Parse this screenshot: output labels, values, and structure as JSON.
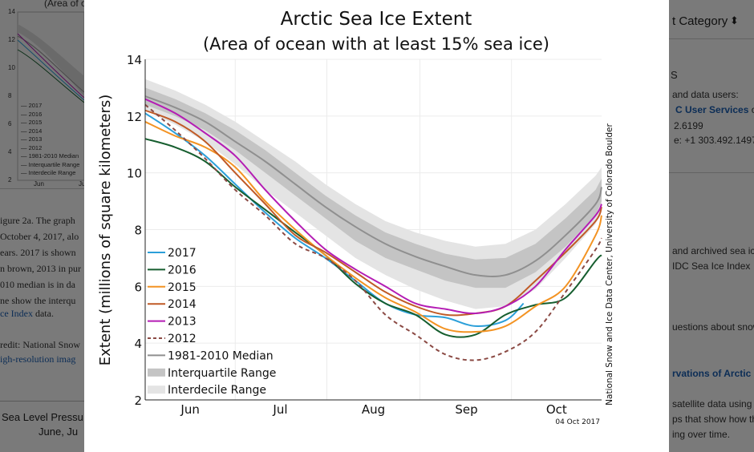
{
  "background_page": {
    "left_thumbnail": {
      "title_fragment": "(Area of o",
      "y_ticks": [
        "14",
        "12",
        "10",
        "8",
        "6",
        "4",
        "2"
      ],
      "legend": [
        "2017",
        "2016",
        "2015",
        "2014",
        "2013",
        "2012",
        "1981-2010 Median",
        "Interquartile Range",
        "Interdecile Range"
      ],
      "x_ticks": [
        "Jun",
        "Ju"
      ]
    },
    "left_text": [
      "igure 2a. The graph",
      "October 4, 2017, alo",
      "ears. 2017 is shown",
      "n brown, 2013 in pur",
      "010 median is in da",
      "ne show the interqu"
    ],
    "left_link": "ce Index",
    "left_link_suffix": " data.",
    "left_credit": "redit: National Snow",
    "left_hires": "igh-resolution imag",
    "left_bottom": [
      "Sea Level Pressu",
      "June, Ju"
    ],
    "right_category": "t Category",
    "right_letter": "S",
    "right_lines": [
      "and data users:"
    ],
    "right_link1": "C User Services",
    "right_link1_suffix": " or",
    "right_phone1": "2.6199",
    "right_phone2": "e: +1 303.492.1497",
    "right_archived": [
      "and archived sea ic",
      "IDC Sea Ice Index"
    ],
    "right_questions": "uestions about snow",
    "right_observations": "rvations of Arctic",
    "right_bottom": [
      "satellite data using",
      "ps that show how the",
      "ing over time."
    ]
  },
  "chart_data": {
    "type": "line",
    "title": "Arctic Sea Ice Extent",
    "subtitle": "(Area of ocean with at least 15% sea ice)",
    "ylabel": "Extent (millions of square kilometers)",
    "xlabel": "",
    "ylim": [
      2,
      14
    ],
    "y_ticks": [
      2,
      4,
      6,
      8,
      10,
      12,
      14
    ],
    "x_tick_labels": [
      "Jun",
      "Jul",
      "Aug",
      "Sep",
      "Oct"
    ],
    "x_tick_days": [
      15,
      45,
      76,
      107,
      137
    ],
    "x_range_days": [
      0,
      152
    ],
    "date_stamp": "04 Oct 2017",
    "credit": "National Snow and Ice Data Center, University of Colorado Boulder",
    "days": [
      0,
      10,
      20,
      30,
      40,
      50,
      60,
      70,
      80,
      90,
      100,
      110,
      120,
      130,
      140,
      150,
      152
    ],
    "median": [
      12.7,
      12.3,
      11.8,
      11.1,
      10.4,
      9.6,
      8.8,
      8.1,
      7.5,
      7.05,
      6.7,
      6.4,
      6.4,
      6.9,
      7.8,
      8.9,
      9.5
    ],
    "interquartile": {
      "low": [
        12.4,
        12.0,
        11.5,
        10.8,
        10.0,
        9.2,
        8.4,
        7.6,
        7.0,
        6.6,
        6.2,
        5.95,
        5.95,
        6.5,
        7.4,
        8.5,
        9.0
      ],
      "high": [
        13.0,
        12.6,
        12.1,
        11.5,
        10.8,
        10.0,
        9.2,
        8.5,
        7.9,
        7.5,
        7.15,
        6.95,
        7.0,
        7.5,
        8.4,
        9.4,
        9.8
      ]
    },
    "interdecile": {
      "low": [
        12.2,
        11.7,
        11.1,
        10.3,
        9.4,
        8.6,
        7.8,
        7.0,
        6.4,
        5.9,
        5.5,
        5.2,
        5.3,
        5.9,
        7.0,
        8.2,
        8.7
      ],
      "high": [
        13.3,
        12.9,
        12.4,
        11.8,
        11.1,
        10.4,
        9.6,
        8.9,
        8.3,
        7.9,
        7.6,
        7.4,
        7.5,
        8.0,
        8.9,
        9.9,
        10.2
      ]
    },
    "series": [
      {
        "name": "2017",
        "color": "#2b9fd9",
        "dash": false,
        "x": [
          0,
          10,
          20,
          30,
          40,
          50,
          60,
          70,
          80,
          90,
          100,
          110,
          120,
          126
        ],
        "values": [
          12.1,
          11.4,
          10.6,
          9.6,
          8.6,
          7.7,
          7.0,
          6.2,
          5.4,
          5.0,
          4.9,
          4.6,
          4.8,
          5.4
        ]
      },
      {
        "name": "2016",
        "color": "#165e2f",
        "dash": false,
        "x": [
          0,
          10,
          20,
          30,
          40,
          50,
          60,
          70,
          80,
          90,
          100,
          110,
          120,
          130,
          140,
          150,
          152
        ],
        "values": [
          11.2,
          10.9,
          10.4,
          9.5,
          8.7,
          7.9,
          7.1,
          6.1,
          5.4,
          5.0,
          4.3,
          4.3,
          5.0,
          5.35,
          5.6,
          6.9,
          7.1
        ]
      },
      {
        "name": "2015",
        "color": "#f39323",
        "dash": false,
        "x": [
          0,
          10,
          20,
          30,
          40,
          50,
          60,
          70,
          80,
          90,
          100,
          110,
          120,
          130,
          140,
          150,
          152
        ],
        "values": [
          11.8,
          11.3,
          10.9,
          10.2,
          9.0,
          8.0,
          7.1,
          6.3,
          5.6,
          5.1,
          4.5,
          4.4,
          4.6,
          5.3,
          6.0,
          7.8,
          8.5
        ]
      },
      {
        "name": "2014",
        "color": "#c05a26",
        "dash": false,
        "x": [
          0,
          10,
          20,
          30,
          40,
          50,
          60,
          70,
          80,
          90,
          100,
          110,
          120,
          130,
          140,
          150,
          152
        ],
        "values": [
          12.2,
          11.8,
          11.1,
          10.0,
          8.9,
          7.8,
          7.2,
          6.5,
          5.8,
          5.3,
          5.0,
          5.05,
          5.3,
          6.2,
          7.2,
          8.3,
          8.8
        ]
      },
      {
        "name": "2013",
        "color": "#b41cb4",
        "dash": false,
        "x": [
          0,
          10,
          20,
          30,
          40,
          50,
          60,
          70,
          80,
          90,
          100,
          110,
          120,
          130,
          140,
          150,
          152
        ],
        "values": [
          12.6,
          12.1,
          11.4,
          10.6,
          9.4,
          8.3,
          7.3,
          6.6,
          6.0,
          5.4,
          5.2,
          5.05,
          5.3,
          6.0,
          7.3,
          8.5,
          8.9
        ]
      },
      {
        "name": "2012",
        "color": "#8b4a44",
        "dash": true,
        "x": [
          0,
          10,
          20,
          30,
          40,
          50,
          60,
          70,
          80,
          90,
          100,
          110,
          120,
          130,
          140,
          150,
          152
        ],
        "values": [
          12.4,
          11.5,
          10.5,
          9.4,
          8.5,
          7.5,
          7.0,
          6.2,
          5.0,
          4.3,
          3.6,
          3.4,
          3.7,
          4.4,
          5.8,
          7.3,
          7.7
        ]
      }
    ],
    "legend": [
      {
        "label": "2017",
        "kind": "line",
        "color": "#2b9fd9",
        "dash": false
      },
      {
        "label": "2016",
        "kind": "line",
        "color": "#165e2f",
        "dash": false
      },
      {
        "label": "2015",
        "kind": "line",
        "color": "#f39323",
        "dash": false
      },
      {
        "label": "2014",
        "kind": "line",
        "color": "#c05a26",
        "dash": false
      },
      {
        "label": "2013",
        "kind": "line",
        "color": "#b41cb4",
        "dash": false
      },
      {
        "label": "2012",
        "kind": "line",
        "color": "#8b4a44",
        "dash": true
      },
      {
        "label": "1981-2010 Median",
        "kind": "line",
        "color": "#8f8f8f",
        "dash": false
      },
      {
        "label": "Interquartile Range",
        "kind": "band",
        "color": "#c4c4c4",
        "dash": false
      },
      {
        "label": "Interdecile Range",
        "kind": "band",
        "color": "#e4e4e4",
        "dash": false
      }
    ],
    "colors": {
      "median": "#8f8f8f",
      "interquartile": "#c4c4c4",
      "interdecile": "#e4e4e4"
    }
  }
}
